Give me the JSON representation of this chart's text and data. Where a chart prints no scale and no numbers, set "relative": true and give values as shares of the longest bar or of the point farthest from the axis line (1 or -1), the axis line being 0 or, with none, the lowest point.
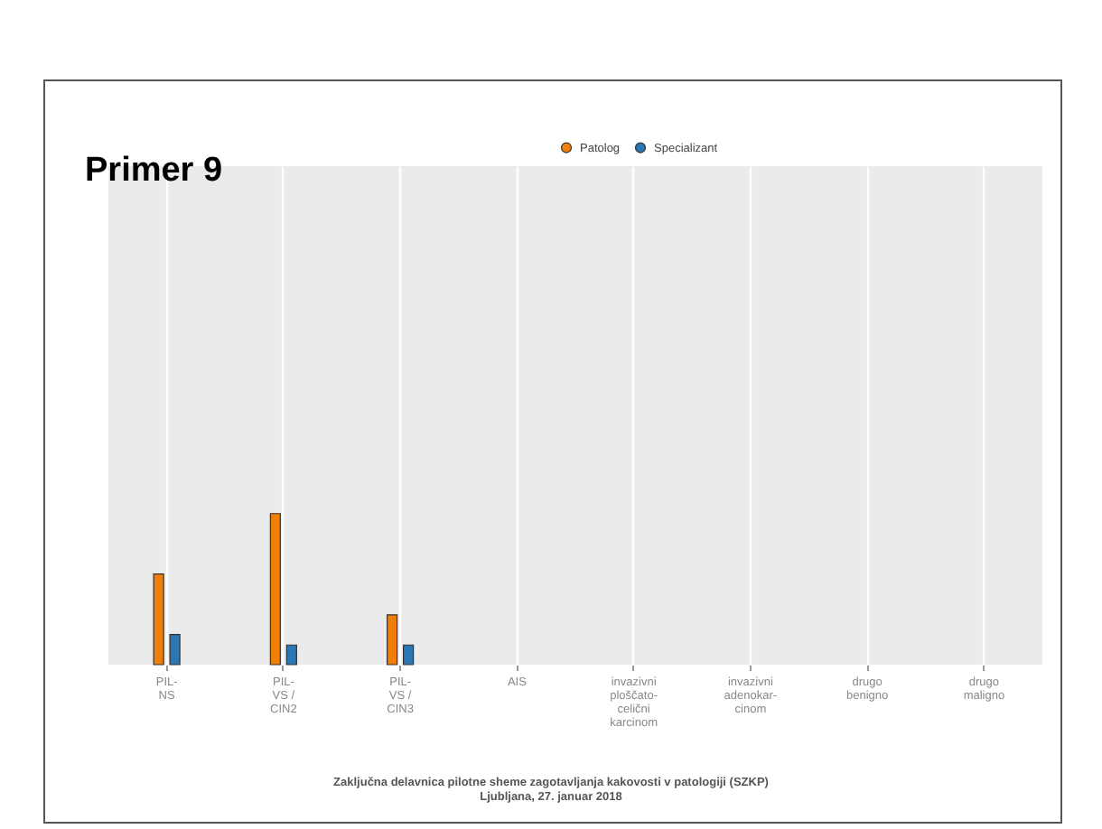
{
  "chart_data": {
    "type": "bar",
    "title": "Primer 9",
    "categories": [
      "PIL-NS",
      "PIL-VS / CIN2",
      "PIL-VS / CIN3",
      "AIS",
      "invazivni ploščato-celični karcinom",
      "invazivni adenokar-cinom",
      "drugo benigno",
      "drugo maligno"
    ],
    "series": [
      {
        "name": "Patolog",
        "color": "#f07f0a",
        "values": [
          0.6,
          1,
          0.33,
          null,
          null,
          null,
          null,
          null
        ]
      },
      {
        "name": "Specializant",
        "color": "#2a77b4",
        "values": [
          0.2,
          0.13,
          0.13,
          null,
          null,
          null,
          null,
          null
        ]
      }
    ],
    "relative": true,
    "tick_labels": "x",
    "grid": "x",
    "legend": "top",
    "annotations": [
      "Zaključna delavnica pilotne sheme zagotavljanja kakovosti v patologiji (SZKP)",
      "Ljubljana, 27. januar 2018"
    ]
  }
}
